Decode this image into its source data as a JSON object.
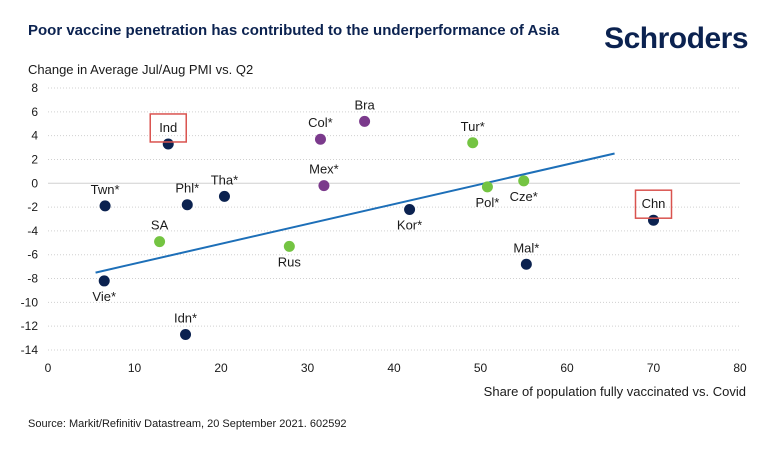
{
  "header": {
    "title": "Poor vaccine penetration has contributed to the underperformance of Asia",
    "logo_text": "Schroders"
  },
  "footer": {
    "source": "Source: Markit/Refinitiv Datastream, 20 September 2021. 602592"
  },
  "colors": {
    "asia": "#0b2250",
    "latam": "#7b3a8c",
    "emea": "#74c442",
    "trend": "#1d6fb8",
    "highlight_box": "#d9534f",
    "grid": "#d0d0d0"
  },
  "chart_data": {
    "type": "scatter",
    "title": "Poor vaccine penetration has contributed to the underperformance of Asia",
    "xlabel": "Share of population fully vaccinated vs. Covid",
    "ylabel": "Change in Average Jul/Aug PMI vs. Q2",
    "xlim": [
      0,
      80
    ],
    "ylim": [
      -14,
      8
    ],
    "x_ticks": [
      0,
      10,
      20,
      30,
      40,
      50,
      60,
      70,
      80
    ],
    "y_ticks": [
      8,
      6,
      4,
      2,
      0,
      -2,
      -4,
      -6,
      -8,
      -10,
      -12,
      -14
    ],
    "grid": "horizontal",
    "points": [
      {
        "label": "Ind",
        "x": 13.9,
        "y": 3.3,
        "group": "asia",
        "label_pos": "above",
        "boxed": true
      },
      {
        "label": "Twn*",
        "x": 6.6,
        "y": -1.9,
        "group": "asia",
        "label_pos": "above"
      },
      {
        "label": "Phl*",
        "x": 16.1,
        "y": -1.8,
        "group": "asia",
        "label_pos": "above"
      },
      {
        "label": "Tha*",
        "x": 20.4,
        "y": -1.1,
        "group": "asia",
        "label_pos": "above"
      },
      {
        "label": "Vie*",
        "x": 6.5,
        "y": -8.2,
        "group": "asia",
        "label_pos": "below"
      },
      {
        "label": "Idn*",
        "x": 15.9,
        "y": -12.7,
        "group": "asia",
        "label_pos": "above"
      },
      {
        "label": "Kor*",
        "x": 41.8,
        "y": -2.2,
        "group": "asia",
        "label_pos": "below"
      },
      {
        "label": "Mal*",
        "x": 55.3,
        "y": -6.8,
        "group": "asia",
        "label_pos": "above"
      },
      {
        "label": "Chn",
        "x": 70.0,
        "y": -3.1,
        "group": "asia",
        "label_pos": "above",
        "boxed": true
      },
      {
        "label": "Col*",
        "x": 31.5,
        "y": 3.7,
        "group": "latam",
        "label_pos": "above"
      },
      {
        "label": "Bra",
        "x": 36.6,
        "y": 5.2,
        "group": "latam",
        "label_pos": "above"
      },
      {
        "label": "Mex*",
        "x": 31.9,
        "y": -0.2,
        "group": "latam",
        "label_pos": "above"
      },
      {
        "label": "SA",
        "x": 12.9,
        "y": -4.9,
        "group": "emea",
        "label_pos": "above"
      },
      {
        "label": "Rus",
        "x": 27.9,
        "y": -5.3,
        "group": "emea",
        "label_pos": "below"
      },
      {
        "label": "Tur*",
        "x": 49.1,
        "y": 3.4,
        "group": "emea",
        "label_pos": "above"
      },
      {
        "label": "Pol*",
        "x": 50.8,
        "y": -0.3,
        "group": "emea",
        "label_pos": "below"
      },
      {
        "label": "Cze*",
        "x": 55.0,
        "y": 0.2,
        "group": "emea",
        "label_pos": "below"
      }
    ],
    "trendline": {
      "x": [
        5.5,
        65.5
      ],
      "y": [
        -7.5,
        2.5
      ]
    }
  }
}
